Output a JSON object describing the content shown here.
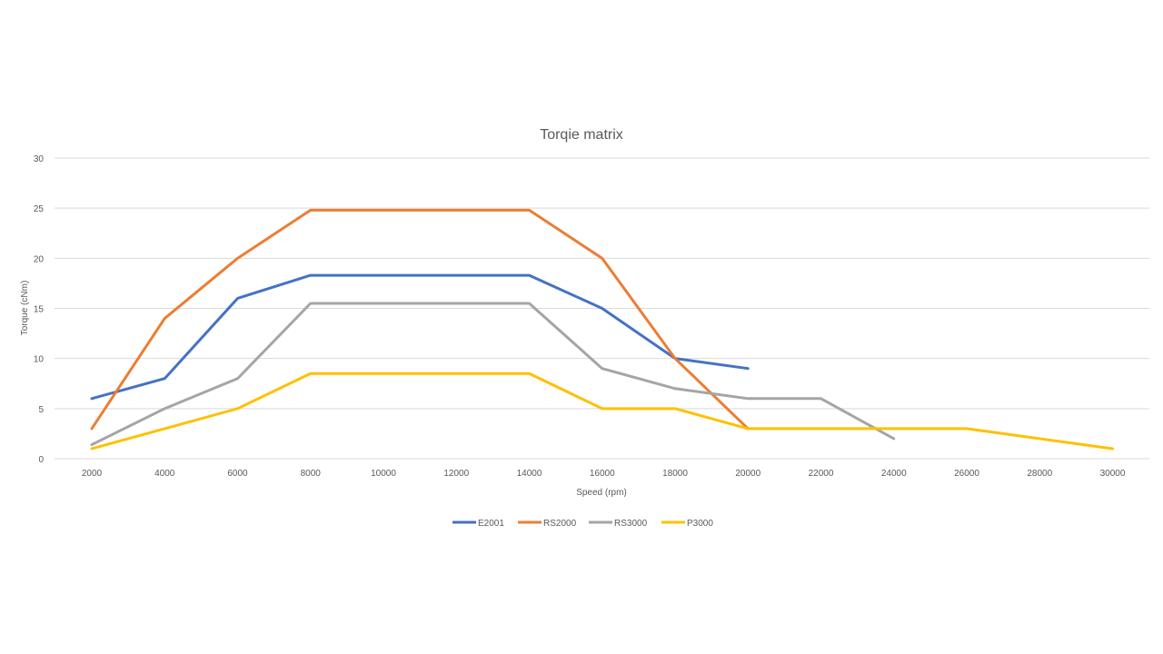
{
  "chart_data": {
    "type": "line",
    "title": "Torqie matrix",
    "xlabel": "Speed  (rpm)",
    "ylabel": "Torque (cNm)",
    "categories": [
      "2000",
      "4000",
      "6000",
      "8000",
      "10000",
      "12000",
      "14000",
      "16000",
      "18000",
      "20000",
      "22000",
      "24000",
      "26000",
      "28000",
      "30000"
    ],
    "ylim": [
      0,
      30
    ],
    "yticks": [
      0,
      5,
      10,
      15,
      20,
      25,
      30
    ],
    "grid": true,
    "legend_position": "bottom",
    "series": [
      {
        "name": "E2001",
        "color": "#4472C4",
        "values": [
          6,
          8,
          16,
          18.3,
          18.3,
          18.3,
          18.3,
          15,
          10,
          9,
          null,
          null,
          null,
          null,
          null
        ]
      },
      {
        "name": "RS2000",
        "color": "#ED7D31",
        "values": [
          3,
          14,
          20,
          24.8,
          24.8,
          24.8,
          24.8,
          20,
          10,
          3,
          null,
          null,
          null,
          null,
          null
        ]
      },
      {
        "name": "RS3000",
        "color": "#A5A5A5",
        "values": [
          1.4,
          5,
          8,
          15.5,
          15.5,
          15.5,
          15.5,
          9,
          7,
          6,
          6,
          2,
          null,
          null,
          null
        ]
      },
      {
        "name": "P3000",
        "color": "#FFC000",
        "values": [
          1,
          3,
          5,
          8.5,
          8.5,
          8.5,
          8.5,
          5,
          5,
          3,
          3,
          3,
          3,
          2,
          1
        ]
      }
    ]
  }
}
